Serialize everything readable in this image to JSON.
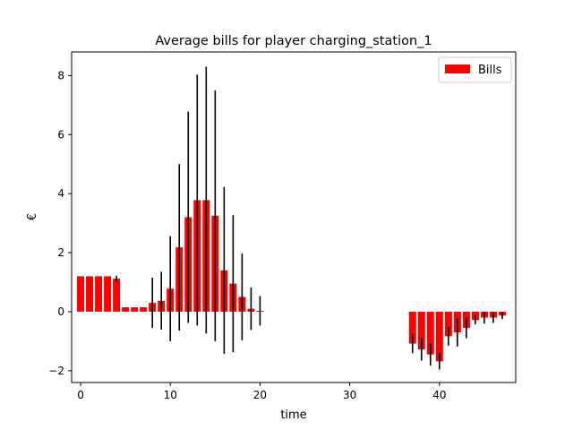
{
  "chart_data": {
    "type": "bar",
    "title": "Average bills for player charging_station_1",
    "xlabel": "time",
    "ylabel": "€",
    "xlim": [
      -1,
      48.5
    ],
    "ylim": [
      -2.4,
      8.8
    ],
    "xticks": [
      0,
      10,
      20,
      30,
      40
    ],
    "yticks": [
      -2,
      0,
      2,
      4,
      6,
      8
    ],
    "grid": false,
    "legend_position": "top-right",
    "bar_color": "#ff0000",
    "errorbar_color": "#000000",
    "series": [
      {
        "name": "Bills",
        "x": [
          0,
          1,
          2,
          3,
          4,
          5,
          6,
          7,
          8,
          9,
          10,
          11,
          12,
          13,
          14,
          15,
          16,
          17,
          18,
          19,
          20,
          37,
          38,
          39,
          40,
          41,
          42,
          43,
          44,
          45,
          46,
          47
        ],
        "values": [
          1.2,
          1.2,
          1.2,
          1.2,
          1.12,
          0.15,
          0.15,
          0.15,
          0.3,
          0.37,
          0.78,
          2.18,
          3.2,
          3.78,
          3.78,
          3.25,
          1.4,
          0.95,
          0.5,
          0.1,
          0.03,
          -1.08,
          -1.28,
          -1.45,
          -1.68,
          -0.83,
          -0.7,
          -0.55,
          -0.28,
          -0.2,
          -0.2,
          -0.13
        ],
        "errors": [
          0,
          0,
          0,
          0,
          0.1,
          0,
          0,
          0,
          0.85,
          0.98,
          1.78,
          2.82,
          3.58,
          4.25,
          4.52,
          4.25,
          2.83,
          2.32,
          1.47,
          0.72,
          0.5,
          0.33,
          0.38,
          0.38,
          0.28,
          0.32,
          0.48,
          0.35,
          0.15,
          0.2,
          0.18,
          0.12
        ]
      }
    ]
  }
}
